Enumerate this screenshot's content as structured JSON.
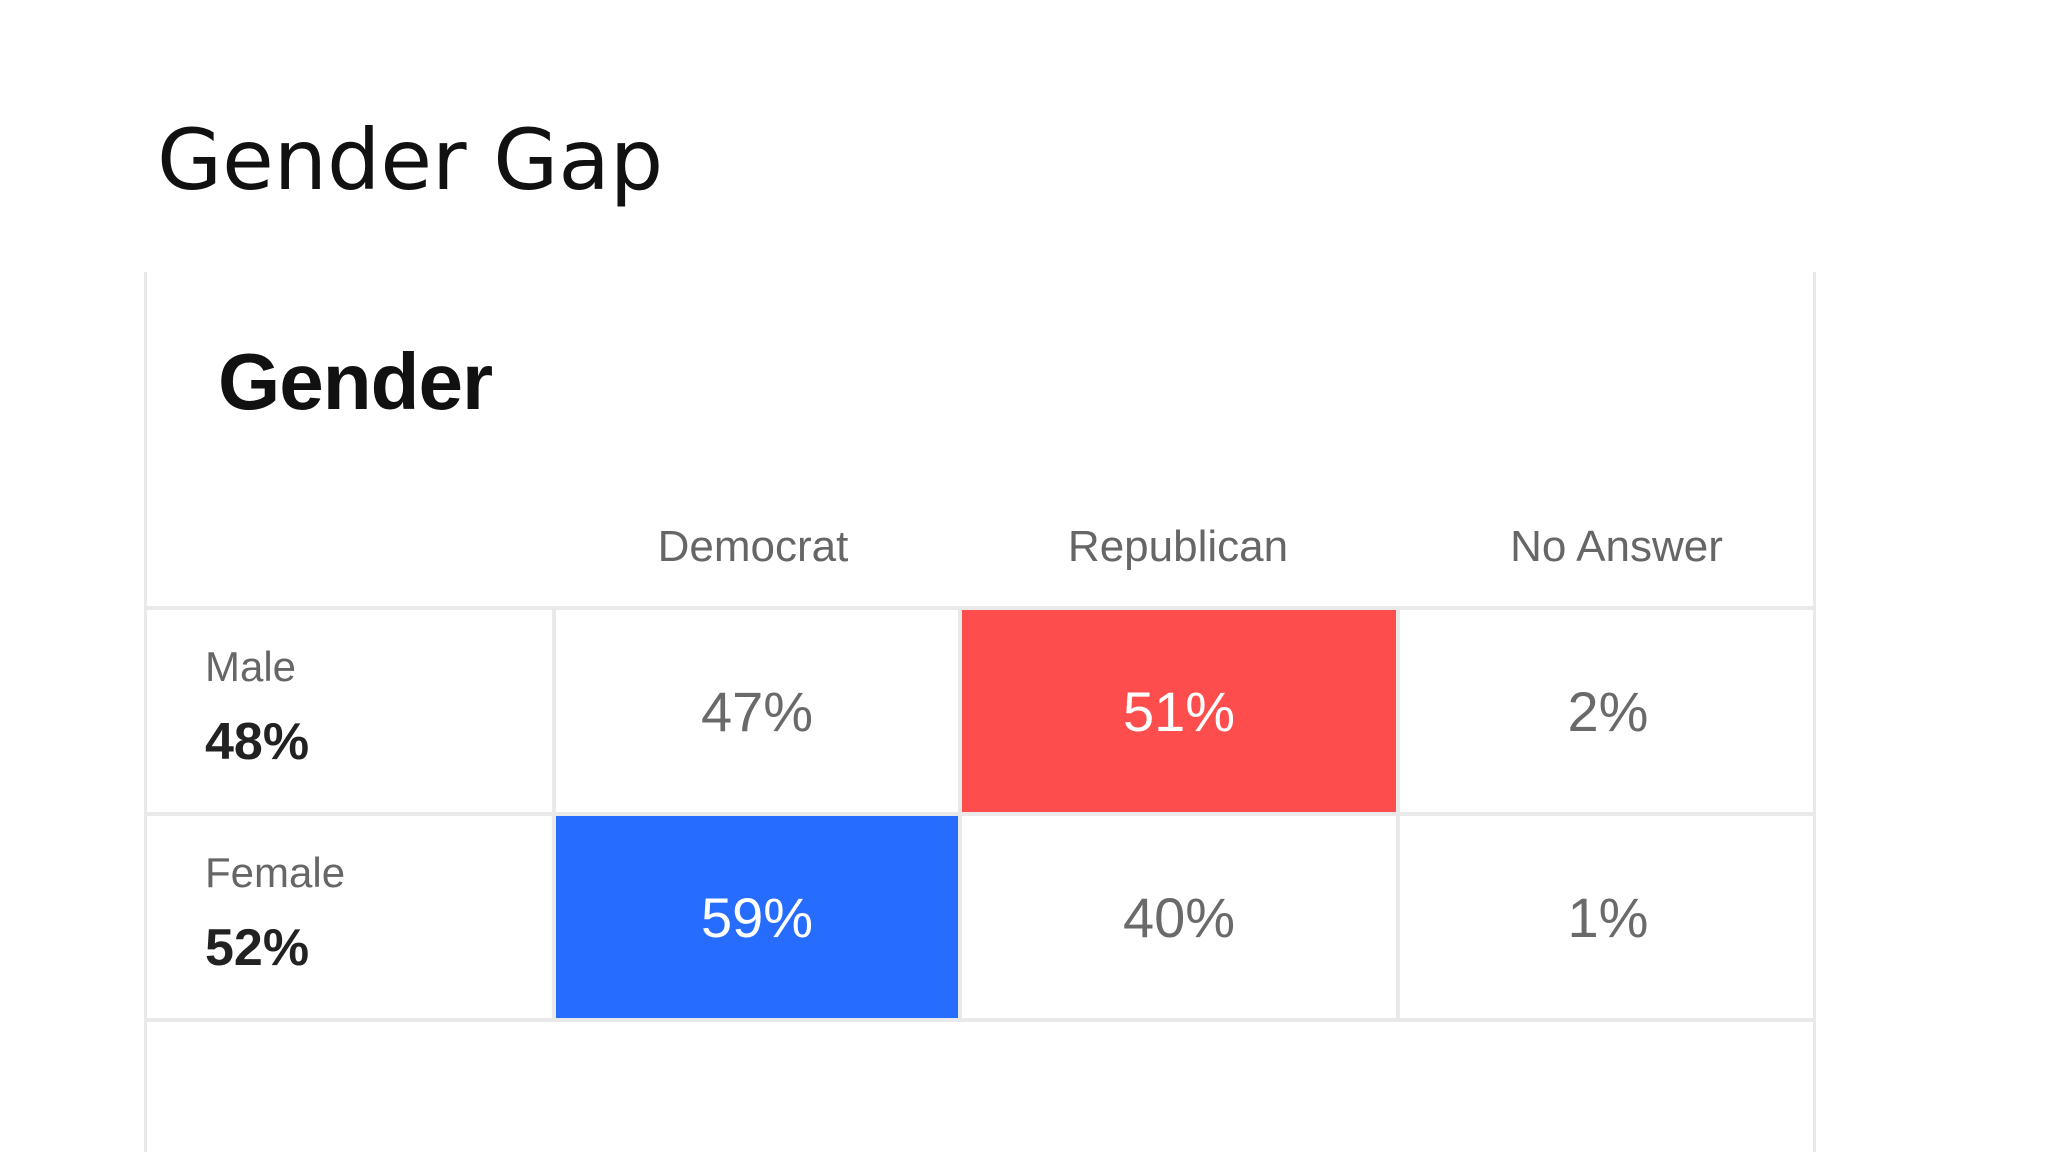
{
  "slide": {
    "title": "Gender Gap"
  },
  "colors": {
    "democrat": "#266dff",
    "republican": "#fe4d4d",
    "gridline": "#e9e9e9",
    "label_text": "#666666"
  },
  "chart_data": {
    "type": "table",
    "title": "Gender",
    "columns": [
      "Democrat",
      "Republican",
      "No Answer"
    ],
    "rows": [
      {
        "label": "Male",
        "share": "48%",
        "values": [
          "47%",
          "51%",
          "2%"
        ],
        "highlight": "Republican"
      },
      {
        "label": "Female",
        "share": "52%",
        "values": [
          "59%",
          "40%",
          "1%"
        ],
        "highlight": "Democrat"
      }
    ]
  }
}
